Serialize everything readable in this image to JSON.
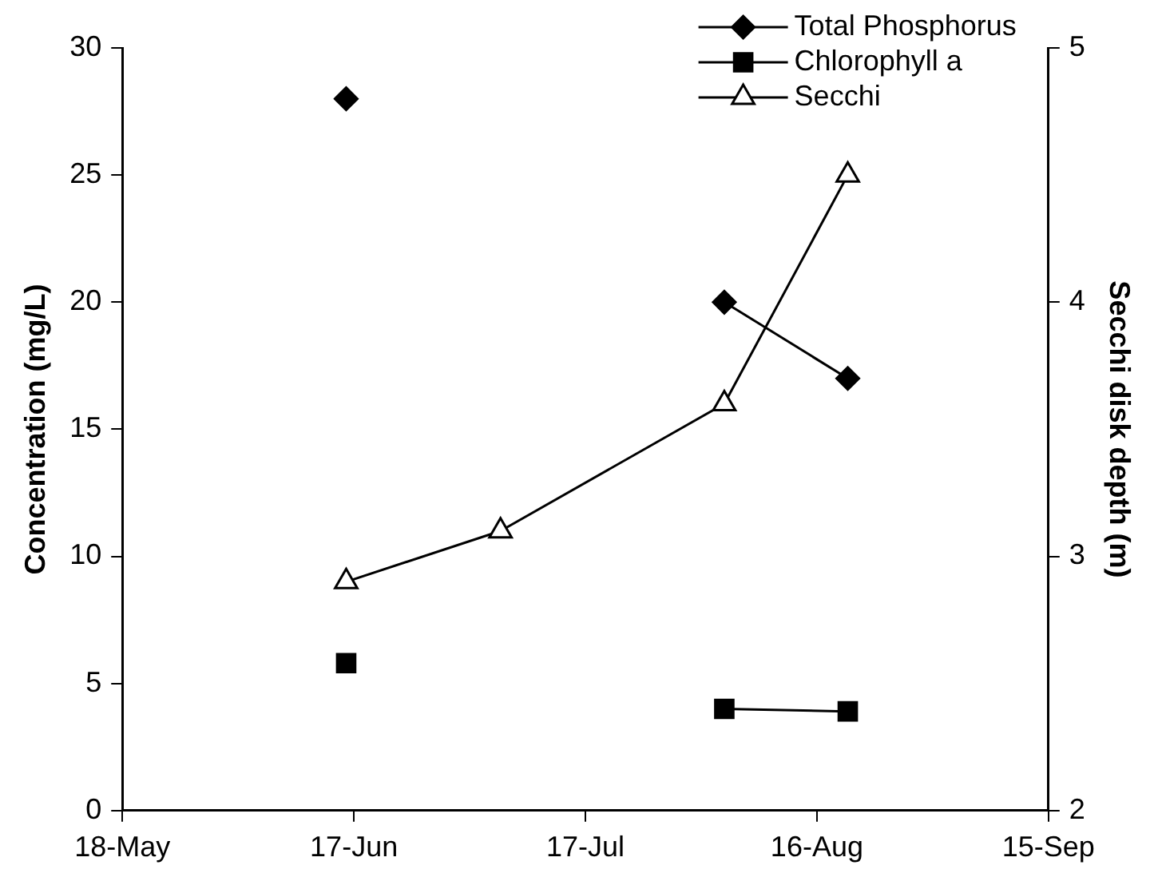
{
  "chart_data": {
    "type": "line",
    "ylabel": "Concentration (mg/L)",
    "y2label": "Secchi disk depth (m)",
    "x": [
      "--06-16",
      "--07-06",
      "--08-04",
      "--08-20"
    ],
    "xlim": [
      "--05-18",
      "--09-15"
    ],
    "xticks": [
      {
        "value": "--05-18",
        "label": "18-May"
      },
      {
        "value": "--06-17",
        "label": "17-Jun"
      },
      {
        "value": "--07-17",
        "label": "17-Jul"
      },
      {
        "value": "--08-16",
        "label": "16-Aug"
      },
      {
        "value": "--09-15",
        "label": "15-Sep"
      }
    ],
    "ylim": [
      0,
      30
    ],
    "yticks": [
      0,
      5,
      10,
      15,
      20,
      25,
      30
    ],
    "y2lim": [
      2,
      5
    ],
    "y2ticks": [
      2,
      3,
      4,
      5
    ],
    "series": [
      {
        "name": "Total Phosphorus",
        "color": "#000000",
        "marker": "diamond",
        "values": [
          28,
          null,
          20,
          17
        ]
      },
      {
        "name": "Chlorophyll a",
        "color": "#000000",
        "marker": "square",
        "values": [
          5.8,
          null,
          4.0,
          3.9
        ]
      },
      {
        "name": "Secchi",
        "color": "#000000",
        "marker": "triangle",
        "axis": "y2",
        "values": [
          2.9,
          3.1,
          3.6,
          4.5
        ]
      }
    ],
    "legend": "top right",
    "grid": false
  }
}
